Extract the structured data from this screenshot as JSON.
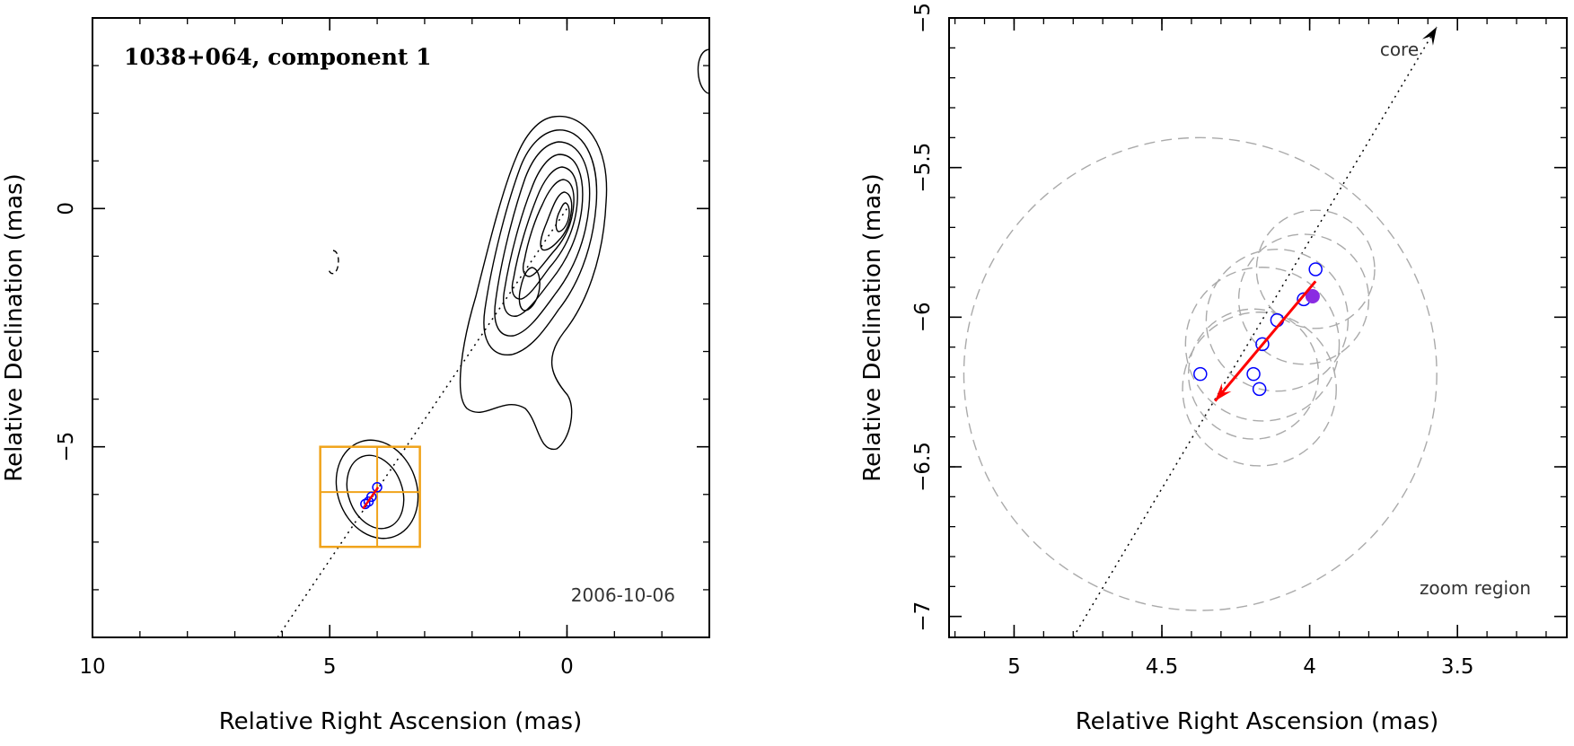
{
  "chart_data": [
    {
      "type": "contour",
      "title": "1038+064, component 1",
      "epoch": "2006-10-06",
      "xlabel": "Relative Right Ascension (mas)",
      "ylabel": "Relative Declination (mas)",
      "xlim": [
        10,
        -3
      ],
      "ylim": [
        -9,
        4
      ],
      "xticks": [
        10,
        5,
        0
      ],
      "xtick_labels": [
        "10",
        "5",
        "0"
      ],
      "yticks": [
        0,
        -5
      ],
      "ytick_labels": [
        "0",
        "−5"
      ],
      "jet_axis": {
        "from": [
          6.1,
          -9.0
        ],
        "to": [
          0,
          0
        ]
      },
      "zoom_box": {
        "ra": [
          5.2,
          3.1
        ],
        "dec": [
          -5.0,
          -7.1
        ],
        "crosshair": [
          4.0,
          -5.95
        ]
      },
      "component_positions": [
        {
          "ra": 4.0,
          "dec": -5.85
        },
        {
          "ra": 4.25,
          "dec": -6.2
        },
        {
          "ra": 4.18,
          "dec": -6.15
        },
        {
          "ra": 4.12,
          "dec": -6.05
        }
      ],
      "colors": {
        "contour": "#000000",
        "zoom_box": "#f0a31a",
        "arrow": "#ff0000",
        "marker": "#0000ff"
      }
    },
    {
      "type": "scatter",
      "title": "zoom region",
      "xlabel": "Relative Right Ascension (mas)",
      "ylabel": "Relative Declination (mas)",
      "xlim": [
        5.22,
        3.13
      ],
      "ylim": [
        -7.07,
        -5.0
      ],
      "xticks": [
        5,
        4.5,
        4,
        3.5
      ],
      "xtick_labels": [
        "5",
        "4.5",
        "4",
        "3.5"
      ],
      "yticks": [
        -5,
        -5.5,
        -6,
        -6.5,
        -7
      ],
      "ytick_labels": [
        "−5",
        "−5.5",
        "−6",
        "−6.5",
        "−7"
      ],
      "core_label": "core",
      "jet_axis": {
        "from": [
          4.8,
          -7.07
        ],
        "to": [
          3.57,
          -5.03
        ]
      },
      "components": [
        {
          "ra": 3.98,
          "dec": -5.84,
          "size": 0.2
        },
        {
          "ra": 4.02,
          "dec": -5.94,
          "size": 0.22
        },
        {
          "ra": 4.11,
          "dec": -6.01,
          "size": 0.24
        },
        {
          "ra": 4.16,
          "dec": -6.09,
          "size": 0.26
        },
        {
          "ra": 4.19,
          "dec": -6.19,
          "size": 0.22
        },
        {
          "ra": 4.17,
          "dec": -6.24,
          "size": 0.26
        },
        {
          "ra": 4.37,
          "dec": -6.19,
          "size": 0.8
        }
      ],
      "reference_point": {
        "ra": 3.99,
        "dec": -5.93
      },
      "motion_vector": {
        "from": [
          3.98,
          -5.88
        ],
        "to": [
          4.32,
          -6.28
        ]
      },
      "colors": {
        "marker": "#0000ff",
        "reference": "#8a2be2",
        "arrow": "#ff0000",
        "circles": "#aaaaaa"
      }
    }
  ]
}
